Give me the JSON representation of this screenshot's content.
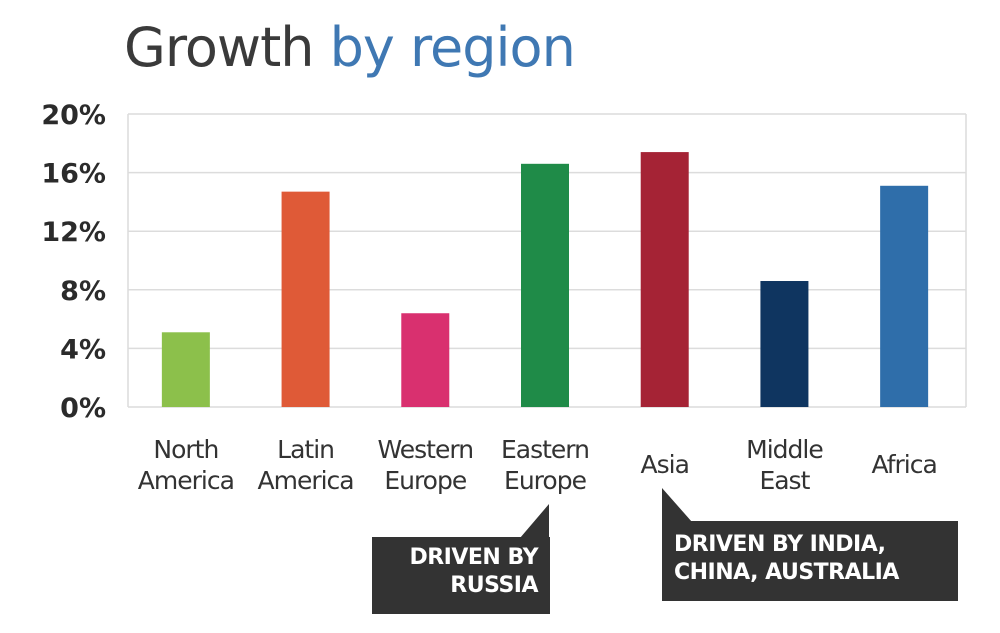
{
  "title": {
    "part1": "Growth ",
    "part2": "by region"
  },
  "colors": {
    "title_dark": "#3a3a3a",
    "title_accent": "#3f78b3",
    "callout_bg": "#333333"
  },
  "chart_data": {
    "type": "bar",
    "title": "Growth by region",
    "xlabel": "",
    "ylabel": "",
    "ylim": [
      0,
      20
    ],
    "yticks": [
      "0%",
      "4%",
      "8%",
      "12%",
      "16%",
      "20%"
    ],
    "grid": true,
    "categories": [
      [
        "North",
        "America"
      ],
      [
        "Latin",
        "America"
      ],
      [
        "Western",
        "Europe"
      ],
      [
        "Eastern",
        "Europe"
      ],
      [
        "Asia"
      ],
      [
        "Middle",
        "East"
      ],
      [
        "Africa"
      ]
    ],
    "values": [
      5.1,
      14.7,
      6.4,
      16.6,
      17.4,
      8.6,
      15.1
    ],
    "bar_colors": [
      "#8cc04b",
      "#df5a37",
      "#d9306f",
      "#1f8b48",
      "#a52335",
      "#0f3560",
      "#2f6eaa"
    ],
    "annotations": [
      {
        "category": "Eastern Europe",
        "lines": [
          "DRIVEN BY",
          "RUSSIA"
        ]
      },
      {
        "category": "Asia",
        "lines": [
          "DRIVEN BY INDIA,",
          "CHINA, AUSTRALIA"
        ]
      }
    ]
  }
}
